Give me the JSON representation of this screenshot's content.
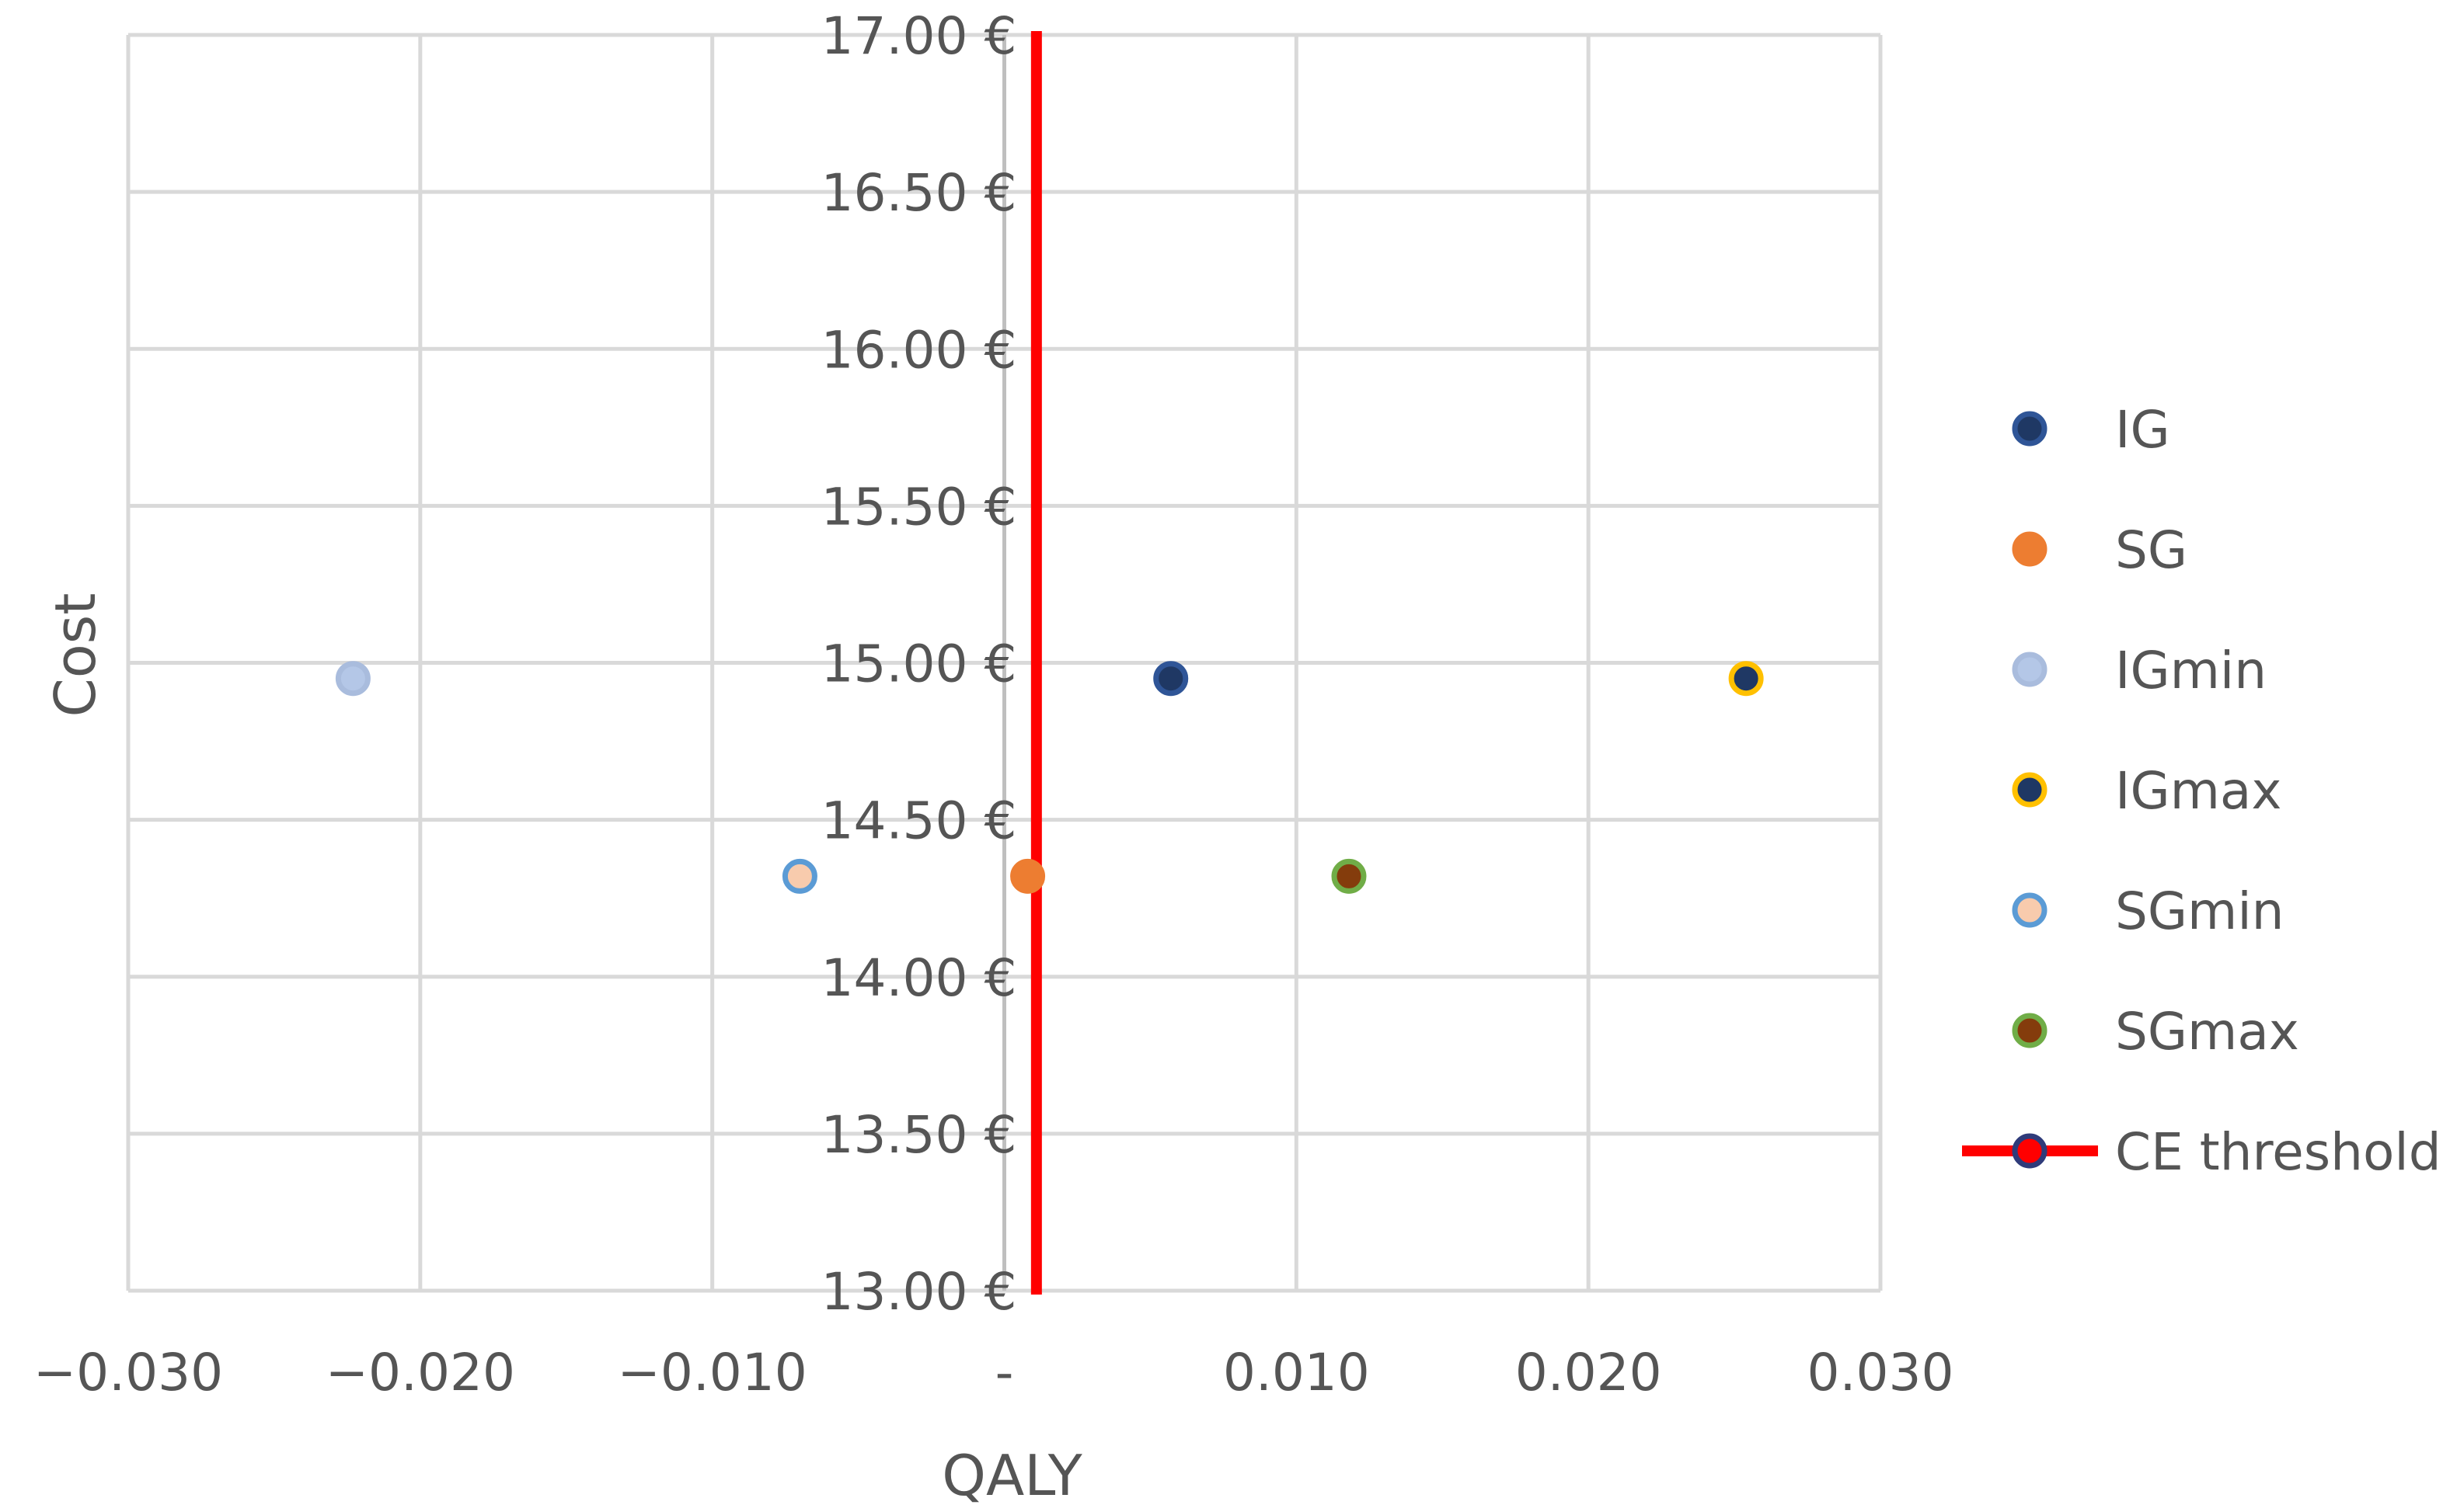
{
  "chart_data": {
    "type": "scatter",
    "title": "",
    "xlabel": "QALY",
    "ylabel": "Cost",
    "xlim": [
      -0.03,
      0.03
    ],
    "ylim": [
      13.0,
      17.0
    ],
    "x_ticks": [
      {
        "value": -0.03,
        "label": "−0.030"
      },
      {
        "value": -0.02,
        "label": "−0.020"
      },
      {
        "value": -0.01,
        "label": "−0.010"
      },
      {
        "value": 0.0,
        "label": "-"
      },
      {
        "value": 0.01,
        "label": "0.010"
      },
      {
        "value": 0.02,
        "label": "0.020"
      },
      {
        "value": 0.03,
        "label": "0.030"
      }
    ],
    "y_ticks": [
      {
        "value": 13.0,
        "label": "13.00 €"
      },
      {
        "value": 13.5,
        "label": "13.50 €"
      },
      {
        "value": 14.0,
        "label": "14.00 €"
      },
      {
        "value": 14.5,
        "label": "14.50 €"
      },
      {
        "value": 15.0,
        "label": "15.00 €"
      },
      {
        "value": 15.5,
        "label": "15.50 €"
      },
      {
        "value": 16.0,
        "label": "16.00 €"
      },
      {
        "value": 16.5,
        "label": "16.50 €"
      },
      {
        "value": 17.0,
        "label": "17.00 €"
      }
    ],
    "grid": true,
    "legend_position": "right",
    "series": [
      {
        "name": "IG",
        "x": 0.0057,
        "y": 14.95,
        "fill": "#1F3864",
        "stroke": "#2F5597"
      },
      {
        "name": "SG",
        "x": 0.0008,
        "y": 14.32,
        "fill": "#ED7D31",
        "stroke": "#ED7D31"
      },
      {
        "name": "IGmin",
        "x": -0.0223,
        "y": 14.95,
        "fill": "#B4C7E7",
        "stroke": "#A9BCDD"
      },
      {
        "name": "IGmax",
        "x": 0.0254,
        "y": 14.95,
        "fill": "#1F3864",
        "stroke": "#FFC000"
      },
      {
        "name": "SGmin",
        "x": -0.007,
        "y": 14.32,
        "fill": "#F8CBAD",
        "stroke": "#5B9BD5"
      },
      {
        "name": "SGmax",
        "x": 0.0118,
        "y": 14.32,
        "fill": "#843C0C",
        "stroke": "#70AD47"
      }
    ],
    "threshold": {
      "name": "CE threshold",
      "x": 0.0011,
      "color": "#FF0000",
      "marker_fill": "#FF0000",
      "marker_stroke": "#2F3B7A"
    }
  }
}
